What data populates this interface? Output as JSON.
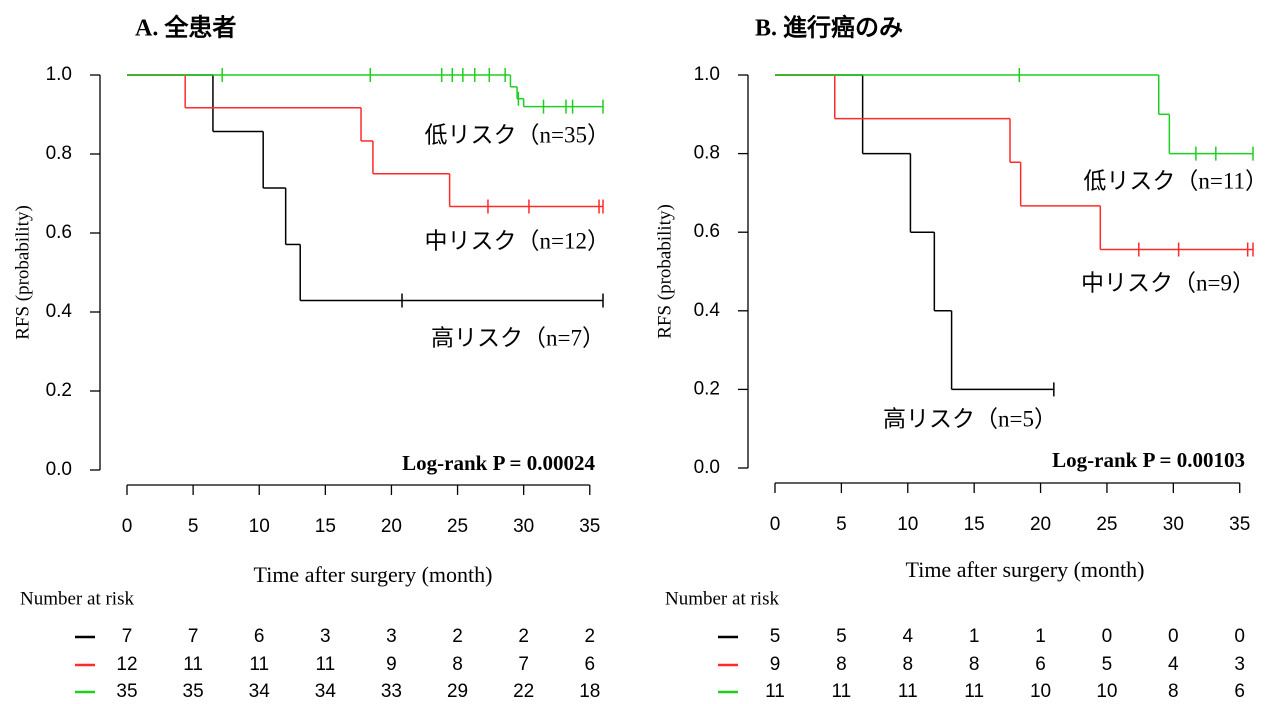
{
  "chart_data": [
    {
      "type": "step",
      "title": "A. 全患者",
      "xlabel": "Time after surgery (month)",
      "ylabel": "RFS (probability)",
      "xlim": [
        0,
        36
      ],
      "ylim": [
        0,
        1
      ],
      "xticks": [
        0,
        5,
        10,
        15,
        20,
        25,
        30,
        35
      ],
      "yticks": [
        {
          "value": 0,
          "label": "0.0"
        },
        0.2,
        0.4,
        0.6,
        0.8,
        {
          "value": 1,
          "label": "1.0"
        }
      ],
      "annotation": "Log-rank P = 0.00024",
      "risk_table_title": "Number at risk",
      "series": [
        {
          "name": "高リスク（n=7）",
          "color": "#000000",
          "x": [
            0,
            6.5,
            10.3,
            12,
            13.1,
            36
          ],
          "values": [
            1,
            0.857,
            0.714,
            0.571,
            0.429,
            0.429
          ],
          "censor_x": [
            20.8,
            36
          ],
          "at_risk": [
            7,
            7,
            6,
            3,
            3,
            2,
            2,
            2
          ]
        },
        {
          "name": "中リスク（n=12）",
          "color": "#ff2a2a",
          "x": [
            0,
            4.4,
            17.7,
            18.6,
            24.4,
            36
          ],
          "values": [
            1,
            0.917,
            0.833,
            0.75,
            0.667,
            0.667
          ],
          "censor_x": [
            27.3,
            30.4,
            35.7,
            36
          ],
          "at_risk": [
            12,
            11,
            11,
            11,
            9,
            8,
            7,
            6
          ]
        },
        {
          "name": "低リスク（n=35）",
          "color": "#1fcf1f",
          "x": [
            0,
            29,
            29.5,
            30,
            36
          ],
          "values": [
            1,
            0.97,
            0.94,
            0.92,
            0.92
          ],
          "censor_x": [
            7.2,
            18.4,
            23.8,
            24.6,
            25.4,
            26.3,
            27.4,
            28.6,
            29.6,
            31.5,
            33.2,
            33.7,
            36
          ],
          "at_risk": [
            35,
            35,
            34,
            34,
            33,
            29,
            22,
            18
          ]
        }
      ]
    },
    {
      "type": "step",
      "title": "B. 進行癌のみ",
      "xlabel": "Time after surgery (month)",
      "ylabel": "RFS (probability)",
      "xlim": [
        0,
        36
      ],
      "ylim": [
        0,
        1
      ],
      "xticks": [
        0,
        5,
        10,
        15,
        20,
        25,
        30,
        35
      ],
      "yticks": [
        {
          "value": 0,
          "label": "0.0"
        },
        0.2,
        0.4,
        0.6,
        0.8,
        {
          "value": 1,
          "label": "1.0"
        }
      ],
      "annotation": "Log-rank P = 0.00103",
      "risk_table_title": "Number at risk",
      "series": [
        {
          "name": "高リスク（n=5）",
          "color": "#000000",
          "x": [
            0,
            6.6,
            10.2,
            12,
            13.3,
            21
          ],
          "values": [
            1,
            0.8,
            0.6,
            0.4,
            0.2,
            0.2
          ],
          "censor_x": [
            21
          ],
          "at_risk": [
            5,
            5,
            4,
            1,
            1,
            0,
            0,
            0
          ]
        },
        {
          "name": "中リスク（n=9）",
          "color": "#ff2a2a",
          "x": [
            0,
            4.5,
            17.7,
            18.5,
            24.5,
            36
          ],
          "values": [
            1,
            0.889,
            0.778,
            0.667,
            0.556,
            0.556
          ],
          "censor_x": [
            27.4,
            30.4,
            35.6,
            36
          ],
          "at_risk": [
            9,
            8,
            8,
            8,
            6,
            5,
            4,
            3
          ]
        },
        {
          "name": "低リスク（n=11）",
          "color": "#1fcf1f",
          "x": [
            0,
            28.9,
            29.7,
            36
          ],
          "values": [
            1,
            0.9,
            0.8,
            0.8
          ],
          "censor_x": [
            18.4,
            31.7,
            33.2,
            36
          ],
          "at_risk": [
            11,
            11,
            11,
            11,
            10,
            10,
            8,
            6
          ]
        }
      ]
    }
  ]
}
